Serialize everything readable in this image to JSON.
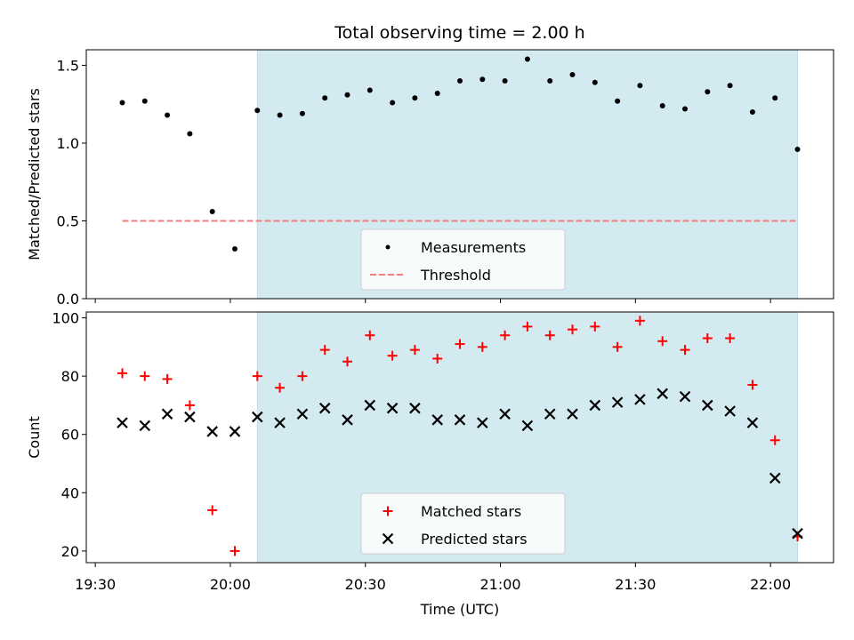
{
  "chart_data": [
    {
      "type": "scatter",
      "title": "Total observing time = 2.00 h",
      "xlabel": "",
      "ylabel": "Matched/Predicted stars",
      "ylim": [
        0,
        1.6
      ],
      "yticks": [
        0.0,
        0.5,
        1.0,
        1.5
      ],
      "ytick_labels": [
        "0.0",
        "0.5",
        "1.0",
        "1.5"
      ],
      "shaded_x_range": [
        "20:06",
        "22:06"
      ],
      "shade_color": "#d4eaf1",
      "legend": {
        "placement": "lower-center",
        "entries": [
          "Measurements",
          "Threshold"
        ]
      },
      "series": [
        {
          "name": "Measurements",
          "marker": "dot",
          "color": "#000000",
          "x": [
            "19:36",
            "19:41",
            "19:46",
            "19:51",
            "19:56",
            "20:01",
            "20:06",
            "20:11",
            "20:16",
            "20:21",
            "20:26",
            "20:31",
            "20:36",
            "20:41",
            "20:46",
            "20:51",
            "20:56",
            "21:01",
            "21:06",
            "21:11",
            "21:16",
            "21:21",
            "21:26",
            "21:31",
            "21:36",
            "21:41",
            "21:46",
            "21:51",
            "21:56",
            "22:01",
            "22:06"
          ],
          "y": [
            1.26,
            1.27,
            1.18,
            1.06,
            0.56,
            0.32,
            1.21,
            1.18,
            1.19,
            1.29,
            1.31,
            1.34,
            1.26,
            1.29,
            1.32,
            1.4,
            1.41,
            1.4,
            1.54,
            1.4,
            1.44,
            1.39,
            1.27,
            1.37,
            1.24,
            1.22,
            1.33,
            1.37,
            1.2,
            1.29,
            0.96
          ]
        },
        {
          "name": "Threshold",
          "line": "dashed",
          "color": "#f08080",
          "x": [
            "19:36",
            "22:06"
          ],
          "y": [
            0.5,
            0.5
          ]
        }
      ]
    },
    {
      "type": "scatter",
      "title": "",
      "xlabel": "Time (UTC)",
      "ylabel": "Count",
      "ylim": [
        16,
        102
      ],
      "yticks": [
        20,
        40,
        60,
        80,
        100
      ],
      "ytick_labels": [
        "20",
        "40",
        "60",
        "80",
        "100"
      ],
      "xlim": [
        "19:28",
        "22:14"
      ],
      "xticks": [
        "19:30",
        "20:00",
        "20:30",
        "21:00",
        "21:30",
        "22:00"
      ],
      "xtick_labels": [
        "19:30",
        "20:00",
        "20:30",
        "21:00",
        "21:30",
        "22:00"
      ],
      "shaded_x_range": [
        "20:06",
        "22:06"
      ],
      "shade_color": "#d4eaf1",
      "legend": {
        "placement": "lower-center",
        "entries": [
          "Matched stars",
          "Predicted stars"
        ]
      },
      "series": [
        {
          "name": "Matched stars",
          "marker": "plus",
          "color": "#ff0000",
          "x": [
            "19:36",
            "19:41",
            "19:46",
            "19:51",
            "19:56",
            "20:01",
            "20:06",
            "20:11",
            "20:16",
            "20:21",
            "20:26",
            "20:31",
            "20:36",
            "20:41",
            "20:46",
            "20:51",
            "20:56",
            "21:01",
            "21:06",
            "21:11",
            "21:16",
            "21:21",
            "21:26",
            "21:31",
            "21:36",
            "21:41",
            "21:46",
            "21:51",
            "21:56",
            "22:01",
            "22:06"
          ],
          "y": [
            81,
            80,
            79,
            70,
            34,
            20,
            80,
            76,
            80,
            89,
            85,
            94,
            87,
            89,
            86,
            91,
            90,
            94,
            97,
            94,
            96,
            97,
            90,
            99,
            92,
            89,
            93,
            93,
            77,
            58,
            25
          ]
        },
        {
          "name": "Predicted stars",
          "marker": "x",
          "color": "#000000",
          "x": [
            "19:36",
            "19:41",
            "19:46",
            "19:51",
            "19:56",
            "20:01",
            "20:06",
            "20:11",
            "20:16",
            "20:21",
            "20:26",
            "20:31",
            "20:36",
            "20:41",
            "20:46",
            "20:51",
            "20:56",
            "21:01",
            "21:06",
            "21:11",
            "21:16",
            "21:21",
            "21:26",
            "21:31",
            "21:36",
            "21:41",
            "21:46",
            "21:51",
            "21:56",
            "22:01",
            "22:06"
          ],
          "y": [
            64,
            63,
            67,
            66,
            61,
            61,
            66,
            64,
            67,
            69,
            65,
            70,
            69,
            69,
            65,
            65,
            64,
            67,
            63,
            67,
            67,
            70,
            71,
            72,
            74,
            73,
            70,
            68,
            64,
            45,
            26
          ]
        }
      ]
    }
  ]
}
